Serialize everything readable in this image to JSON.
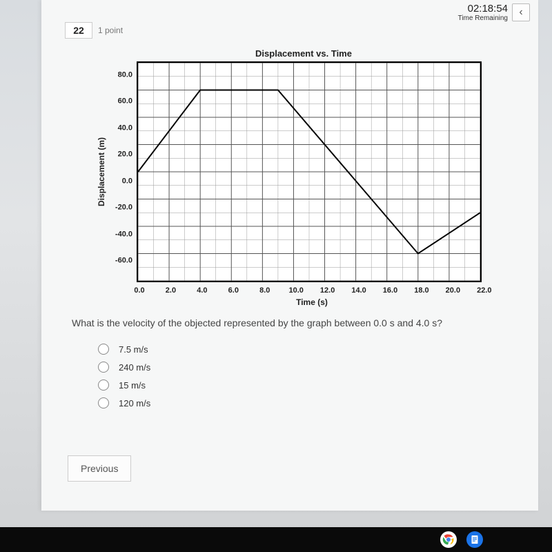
{
  "header": {
    "timer_value": "02:18:54",
    "timer_label": "Time Remaining",
    "question_number": "22",
    "points_label": "1 point"
  },
  "chart": {
    "type": "line",
    "title": "Displacement vs. Time",
    "xlabel": "Time (s)",
    "ylabel": "Displacement (m)",
    "xlim": [
      0,
      22
    ],
    "ylim": [
      -80,
      80
    ],
    "xtick_labels": [
      "0.0",
      "2.0",
      "4.0",
      "6.0",
      "8.0",
      "10.0",
      "12.0",
      "14.0",
      "16.0",
      "18.0",
      "20.0",
      "22.0"
    ],
    "ytick_labels": [
      "80.0",
      "60.0",
      "40.0",
      "20.0",
      "0.0",
      "-20.0",
      "-40.0",
      "-60.0"
    ],
    "minor_grid_step_x": 1,
    "minor_grid_step_y": 10,
    "major_grid_step_x": 2,
    "major_grid_step_y": 20,
    "grid_color_major": "#555555",
    "grid_color_minor": "#999999",
    "line_color": "#000000",
    "line_width": 2,
    "background_color": "#ffffff",
    "data_points": [
      {
        "x": 0.0,
        "y": 0.0
      },
      {
        "x": 4.0,
        "y": 60.0
      },
      {
        "x": 9.0,
        "y": 60.0
      },
      {
        "x": 18.0,
        "y": -60.0
      },
      {
        "x": 22.0,
        "y": -30.0
      }
    ]
  },
  "question": {
    "text": "What is the velocity of the objected represented by the graph between 0.0 s and 4.0 s?",
    "options": [
      "7.5 m/s",
      "240 m/s",
      "15 m/s",
      "120 m/s"
    ]
  },
  "nav": {
    "prev_label": "Previous",
    "back_icon_glyph": "‹"
  }
}
